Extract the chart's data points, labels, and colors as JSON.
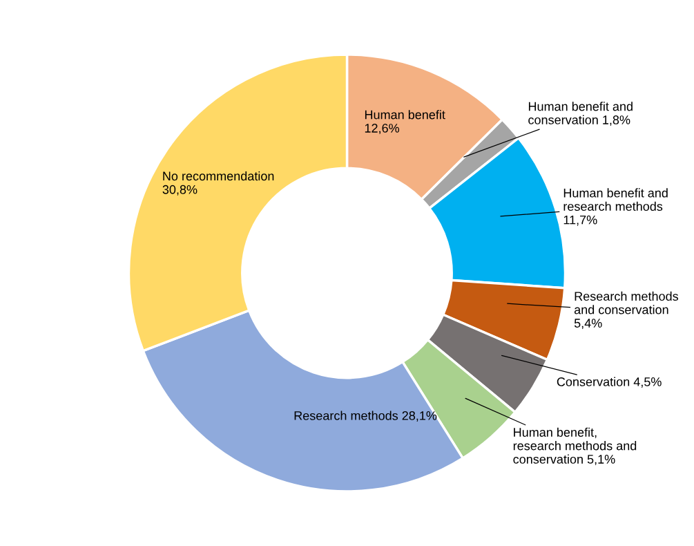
{
  "chart_data": {
    "type": "donut",
    "categories": [
      "Human benefit",
      "Human benefit and conservation",
      "Human benefit and research methods",
      "Research methods and conservation",
      "Conservation",
      "Human benefit, research methods and conservation",
      "Research methods",
      "No recommendation"
    ],
    "values": [
      12.6,
      1.8,
      11.7,
      5.4,
      4.5,
      5.1,
      28.1,
      30.8
    ],
    "value_labels": [
      "12,6%",
      "1,8%",
      "11,7%",
      "5,4%",
      "4,5%",
      "5,1%",
      "28,1%",
      "30,8%"
    ],
    "colors": [
      "#f4b183",
      "#a5a5a5",
      "#00b0f0",
      "#c55a11",
      "#767171",
      "#a9d18e",
      "#8faadc",
      "#ffd966"
    ],
    "legend": false
  }
}
